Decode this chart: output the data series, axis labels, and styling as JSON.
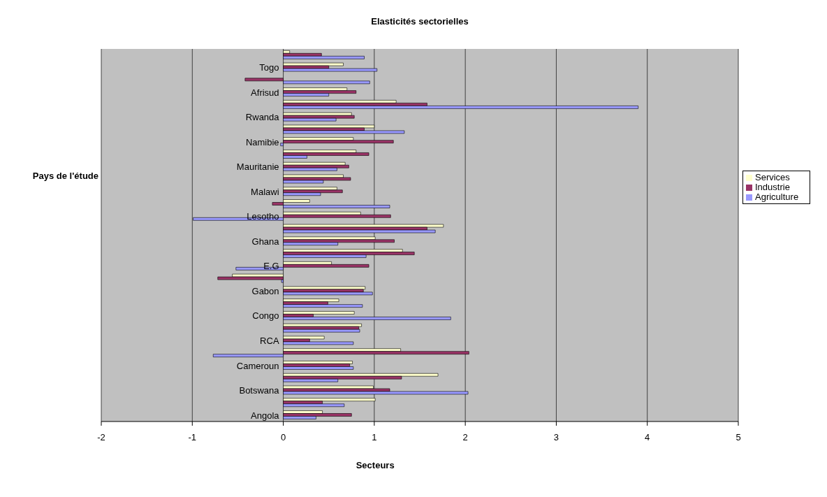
{
  "chart_data": {
    "type": "bar",
    "orientation": "horizontal",
    "title": "Elasticités sectorielles",
    "xlabel": "Secteurs",
    "ylabel": "Pays de l'étude",
    "categories": [
      null,
      "Togo",
      null,
      "Afrisud",
      null,
      "Rwanda",
      null,
      "Namibie",
      null,
      "Mauritanie",
      null,
      "Malawi",
      null,
      "Lesotho",
      null,
      "Ghana",
      null,
      "E.G",
      null,
      "Gabon",
      null,
      "Congo",
      null,
      "RCA",
      null,
      "Cameroun",
      null,
      "Botswana",
      null,
      "Angola"
    ],
    "series": [
      {
        "name": "Services",
        "color": "#ffffcc",
        "values": [
          0.07,
          0.66,
          null,
          0.7,
          1.24,
          0.75,
          1.0,
          0.77,
          0.8,
          0.68,
          0.66,
          0.59,
          0.29,
          0.85,
          1.76,
          1.01,
          1.31,
          0.53,
          -0.56,
          0.9,
          0.61,
          0.78,
          0.86,
          0.45,
          1.29,
          0.76,
          1.7,
          0.99,
          1.01,
          0.43
        ]
      },
      {
        "name": "Industrie",
        "color": "#993366",
        "values": [
          0.42,
          0.5,
          -0.42,
          0.8,
          1.58,
          0.78,
          0.89,
          1.21,
          0.94,
          0.72,
          0.74,
          0.65,
          -0.12,
          1.18,
          1.58,
          1.22,
          1.44,
          0.94,
          -0.72,
          0.88,
          0.49,
          0.33,
          0.83,
          0.29,
          2.04,
          0.73,
          1.3,
          1.17,
          0.43,
          0.75
        ]
      },
      {
        "name": "Agriculture",
        "color": "#9999ff",
        "values": [
          0.89,
          1.03,
          0.95,
          0.5,
          3.9,
          0.58,
          1.33,
          -0.03,
          0.26,
          0.59,
          0.44,
          0.41,
          1.17,
          -0.99,
          1.67,
          0.6,
          0.91,
          -0.52,
          -0.02,
          0.98,
          0.87,
          1.84,
          0.84,
          0.77,
          -0.77,
          0.77,
          0.6,
          2.03,
          0.67,
          0.36
        ]
      }
    ],
    "xlim": [
      -2,
      5
    ],
    "xticks": [
      -2,
      -1,
      0,
      1,
      2,
      3,
      4,
      5
    ],
    "grid": "x",
    "legend": "right"
  }
}
